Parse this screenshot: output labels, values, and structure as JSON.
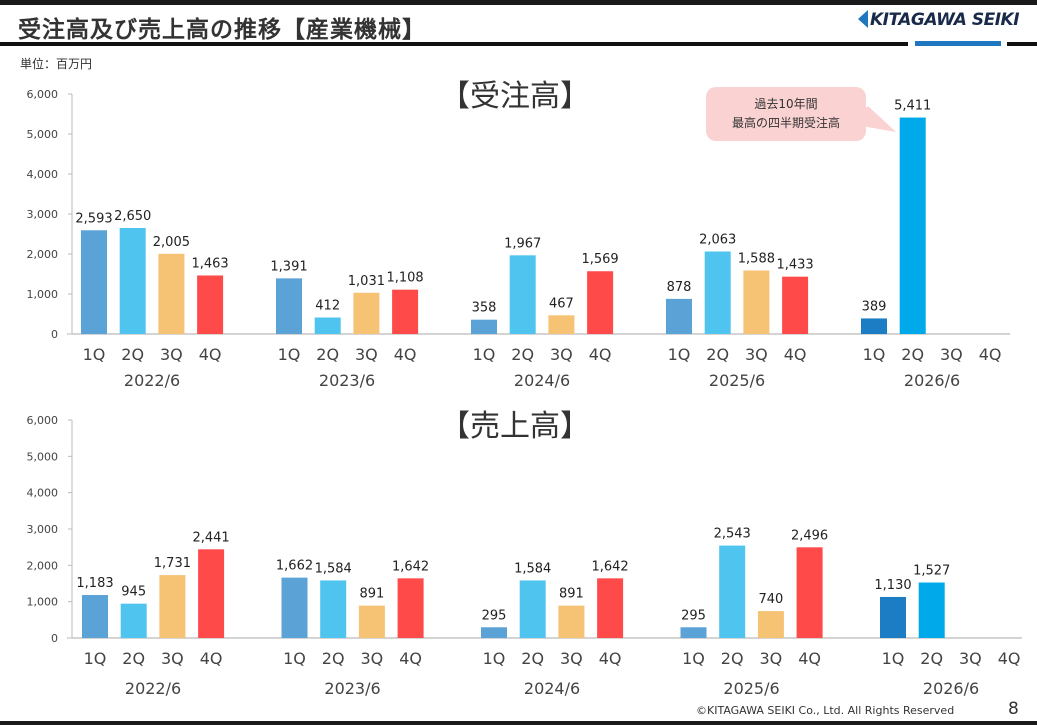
{
  "header": {
    "title": "受注高及び売上高の推移【産業機械】",
    "logo": "KITAGAWA SEIKI",
    "unit": "単位：百万円"
  },
  "callout": {
    "line1": "過去10年間",
    "line2": "最高の四半期受注高"
  },
  "footer": {
    "copyright": "©KITAGAWA SEIKI Co., Ltd. All Rights Reserved",
    "page": "8"
  },
  "colors": {
    "1Q": "#5ba3d6",
    "2Q": "#4ec4ef",
    "3Q": "#f6c274",
    "4Q": "#ff4a4a",
    "current_1Q": "#1c7cc4",
    "current_2Q": "#00a9e9"
  },
  "chart_data": [
    {
      "type": "bar",
      "title": "【受注高】",
      "ylim": [
        0,
        6000
      ],
      "yticks": [
        "0",
        "1,000",
        "2,000",
        "3,000",
        "4,000",
        "5,000",
        "6,000"
      ],
      "quarters": [
        "1Q",
        "2Q",
        "3Q",
        "4Q"
      ],
      "categories": [
        "2022/6",
        "2023/6",
        "2024/6",
        "2025/6",
        "2026/6"
      ],
      "values": [
        [
          2593,
          2650,
          2005,
          1463
        ],
        [
          1391,
          412,
          1031,
          1108
        ],
        [
          358,
          1967,
          467,
          1569
        ],
        [
          878,
          2063,
          1588,
          1433
        ],
        [
          389,
          5411,
          null,
          null
        ]
      ],
      "grid": false
    },
    {
      "type": "bar",
      "title": "【売上高】",
      "ylim": [
        0,
        6000
      ],
      "yticks": [
        "0",
        "1,000",
        "2,000",
        "3,000",
        "4,000",
        "5,000",
        "6,000"
      ],
      "quarters": [
        "1Q",
        "2Q",
        "3Q",
        "4Q"
      ],
      "categories": [
        "2022/6",
        "2023/6",
        "2024/6",
        "2025/6",
        "2026/6"
      ],
      "values": [
        [
          1183,
          945,
          1731,
          2441
        ],
        [
          1662,
          1584,
          891,
          1642
        ],
        [
          295,
          1584,
          891,
          1642
        ],
        [
          295,
          2543,
          740,
          2496
        ],
        [
          1130,
          1527,
          null,
          null
        ]
      ],
      "grid": false
    }
  ]
}
